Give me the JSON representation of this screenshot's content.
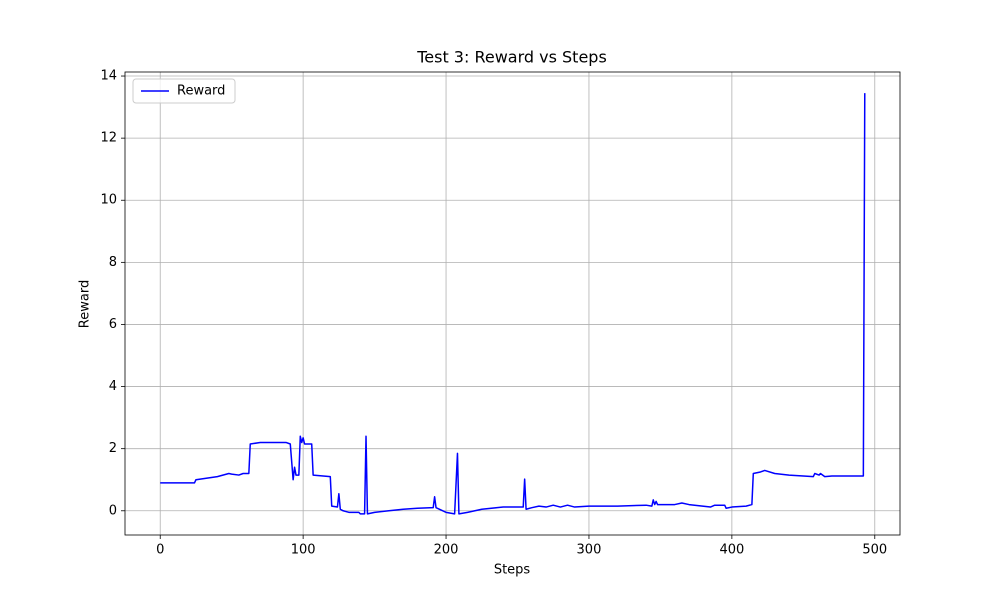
{
  "chart_data": {
    "type": "line",
    "title": "Test 3: Reward vs Steps",
    "x_label": "Steps",
    "y_label": "Reward",
    "x": [
      0,
      24,
      25,
      40,
      48,
      50,
      55,
      58,
      62,
      63,
      70,
      80,
      88,
      91,
      93,
      94,
      95,
      97,
      98,
      99,
      100,
      101,
      106,
      107,
      119,
      120,
      124,
      125,
      126,
      128,
      132,
      139,
      140,
      143,
      144,
      145,
      150,
      160,
      170,
      180,
      191,
      192,
      193,
      200,
      206,
      208,
      209,
      215,
      225,
      240,
      254,
      255,
      256,
      260,
      265,
      270,
      275,
      280,
      285,
      290,
      300,
      320,
      340,
      344,
      345,
      346,
      347,
      348,
      360,
      365,
      370,
      385,
      388,
      395,
      396,
      400,
      410,
      414,
      415,
      420,
      423,
      430,
      440,
      450,
      457,
      458,
      461,
      462,
      465,
      470,
      492,
      493
    ],
    "series": [
      {
        "name": "Reward",
        "color": "#0000ff",
        "values": [
          0.9,
          0.9,
          1.0,
          1.1,
          1.2,
          1.18,
          1.15,
          1.2,
          1.2,
          2.15,
          2.2,
          2.2,
          2.2,
          2.15,
          1.0,
          1.4,
          1.15,
          1.15,
          2.4,
          2.2,
          2.35,
          2.15,
          2.15,
          1.15,
          1.1,
          0.15,
          0.12,
          0.55,
          0.05,
          0.0,
          -0.05,
          -0.05,
          -0.1,
          -0.1,
          2.4,
          -0.1,
          -0.05,
          0.0,
          0.05,
          0.08,
          0.1,
          0.45,
          0.1,
          -0.05,
          -0.1,
          1.85,
          -0.1,
          -0.05,
          0.05,
          0.12,
          0.12,
          1.02,
          0.05,
          0.1,
          0.15,
          0.12,
          0.18,
          0.12,
          0.18,
          0.12,
          0.15,
          0.15,
          0.18,
          0.15,
          0.35,
          0.2,
          0.3,
          0.2,
          0.2,
          0.25,
          0.2,
          0.12,
          0.18,
          0.18,
          0.08,
          0.12,
          0.15,
          0.2,
          1.2,
          1.25,
          1.3,
          1.2,
          1.15,
          1.12,
          1.1,
          1.2,
          1.15,
          1.2,
          1.1,
          1.12,
          1.12,
          13.45
        ]
      }
    ],
    "xlim": [
      -24.65,
      517.65
    ],
    "ylim": [
      -0.78,
      14.13
    ],
    "xticks": [
      0,
      100,
      200,
      300,
      400,
      500
    ],
    "yticks": [
      0,
      2,
      4,
      6,
      8,
      10,
      12,
      14
    ],
    "grid": true,
    "legend": "upper left"
  }
}
